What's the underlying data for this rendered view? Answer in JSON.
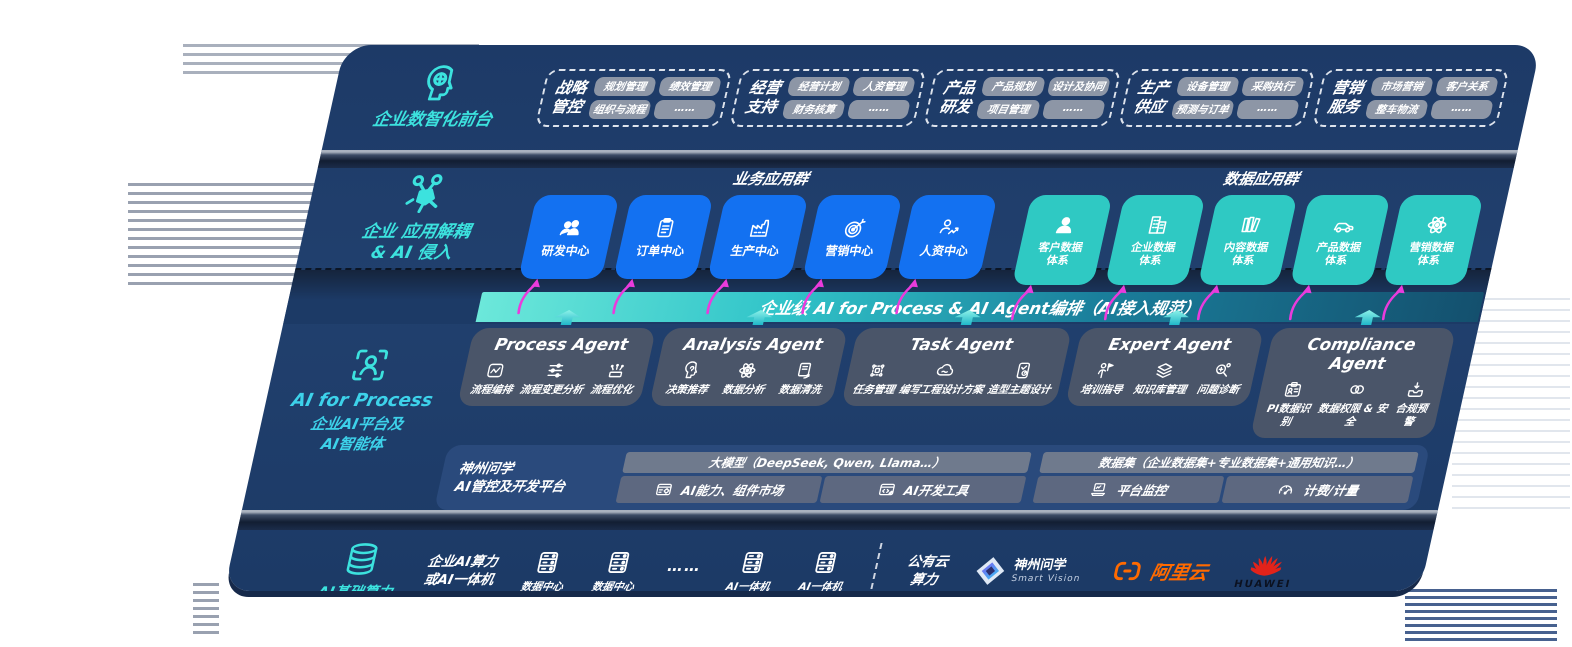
{
  "front_office": {
    "label": "企业数智化前台",
    "groups": [
      {
        "title_lines": [
          "战略",
          "管控"
        ],
        "items": [
          "规划管理",
          "绩效管理",
          "组织与流程",
          "……"
        ]
      },
      {
        "title_lines": [
          "经营",
          "支持"
        ],
        "items": [
          "经营计划",
          "人资管理",
          "财务核算",
          "……"
        ]
      },
      {
        "title_lines": [
          "产品",
          "研发"
        ],
        "items": [
          "产品规划",
          "设计及协同",
          "项目管理",
          "……"
        ]
      },
      {
        "title_lines": [
          "生产",
          "供应"
        ],
        "items": [
          "设备管理",
          "采购执行",
          "预测与订单",
          "……"
        ]
      },
      {
        "title_lines": [
          "营销",
          "服务"
        ],
        "items": [
          "市场营销",
          "客户关系",
          "整车物流",
          "……"
        ]
      }
    ]
  },
  "app_layer": {
    "label_lines": [
      "企业 应用解耦",
      "& AI 侵入"
    ],
    "business_group": {
      "title": "业务应用群",
      "items": [
        {
          "icon": "team-icon",
          "label_lines": [
            "研发中心"
          ]
        },
        {
          "icon": "clipboard-icon",
          "label_lines": [
            "订单中心"
          ]
        },
        {
          "icon": "factory-icon",
          "label_lines": [
            "生产中心"
          ]
        },
        {
          "icon": "target-icon",
          "label_lines": [
            "营销中心"
          ]
        },
        {
          "icon": "hr-icon",
          "label_lines": [
            "人资中心"
          ]
        }
      ]
    },
    "data_group": {
      "title": "数据应用群",
      "items": [
        {
          "icon": "user-icon",
          "label_lines": [
            "客户数据",
            "体系"
          ]
        },
        {
          "icon": "building-icon",
          "label_lines": [
            "企业数据",
            "体系"
          ]
        },
        {
          "icon": "content-icon",
          "label_lines": [
            "内容数据",
            "体系"
          ]
        },
        {
          "icon": "car-icon",
          "label_lines": [
            "产品数据",
            "体系"
          ]
        },
        {
          "icon": "atom-icon",
          "label_lines": [
            "营销数据",
            "体系"
          ]
        }
      ]
    }
  },
  "orchestration_bar": {
    "title": "企业级 AI for Process & AI Agent编排（AI接入规范）"
  },
  "ai_layer": {
    "label_en": "AI for Process",
    "label_lines": [
      "企业AI平台及",
      "AI智能体"
    ],
    "agents": [
      {
        "title": "Process Agent",
        "items": [
          {
            "icon": "flow-icon",
            "label": "流程编排"
          },
          {
            "icon": "sliders-icon",
            "label": "流程变更分析"
          },
          {
            "icon": "optimize-icon",
            "label": "流程优化"
          }
        ]
      },
      {
        "title": "Analysis Agent",
        "items": [
          {
            "icon": "decision-icon",
            "label": "决策推荐"
          },
          {
            "icon": "atom-icon",
            "label": "数据分析"
          },
          {
            "icon": "clean-icon",
            "label": "数据清洗"
          }
        ]
      },
      {
        "title": "Task Agent",
        "items": [
          {
            "icon": "task-icon",
            "label": "任务管理"
          },
          {
            "icon": "cloud-icon",
            "label": "编写工程设计方案"
          },
          {
            "icon": "design-icon",
            "label": "造型主题设计"
          }
        ]
      },
      {
        "title": "Expert Agent",
        "items": [
          {
            "icon": "training-icon",
            "label": "培训指导"
          },
          {
            "icon": "layers-icon",
            "label": "知识库管理"
          },
          {
            "icon": "diagnose-icon",
            "label": "问题诊断"
          }
        ]
      },
      {
        "title": "Compliance Agent",
        "items": [
          {
            "icon": "idcard-icon",
            "label": "PI数据识别"
          },
          {
            "icon": "rings-icon",
            "label": "数据权限 & 安全"
          },
          {
            "icon": "tray-icon",
            "label": "合规预警"
          }
        ]
      }
    ],
    "platform": {
      "label_lines": [
        "神州问学",
        "AI管控及开发平台"
      ],
      "model_bar": "大模型（DeepSeek, Qwen, Llama…）",
      "dataset_bar": "数据集（企业数据集+专业数据集+通用知识…）",
      "left_cells": [
        {
          "icon": "market-icon",
          "label": "AI能力、组件市场"
        },
        {
          "icon": "devtool-icon",
          "label": "AI开发工具"
        }
      ],
      "right_cells": [
        {
          "icon": "monitor-icon",
          "label": "平台监控"
        },
        {
          "icon": "meter-icon",
          "label": "计费/计量"
        }
      ]
    }
  },
  "infra": {
    "label": "AI基础算力",
    "compute_lines": [
      "企业AI算力",
      "或AI一体机"
    ],
    "nodes": [
      {
        "icon": "server-icon",
        "label": "数据中心"
      },
      {
        "icon": "server-icon",
        "label": "数据中心"
      },
      {
        "label": "……"
      },
      {
        "icon": "server-icon",
        "label": "AI一体机"
      },
      {
        "icon": "server-icon",
        "label": "AI一体机"
      }
    ],
    "cloud_lines": [
      "公有云",
      "算力"
    ],
    "vendors": {
      "smartvision": {
        "name": "神州问学",
        "sub": "Smart Vision"
      },
      "alicloud": {
        "name": "阿里云"
      },
      "huawei": {
        "name": "HUAWEI"
      }
    }
  },
  "colors": {
    "panel_navy": "#1e3c68",
    "blue": "#1371f1",
    "teal": "#2fc9c3",
    "teal_text": "#3ce2de",
    "magenta": "#ea3bdc",
    "orange": "#ff6a00",
    "huawei_red": "#e2231a"
  }
}
